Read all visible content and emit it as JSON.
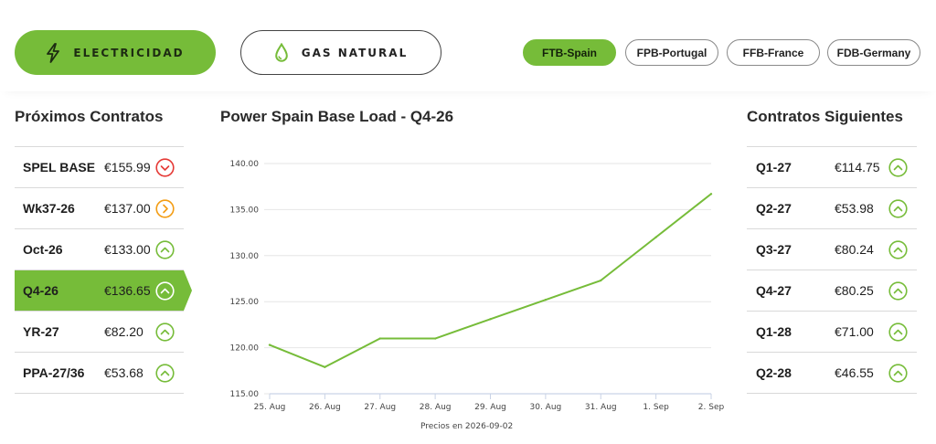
{
  "energy_tabs": [
    {
      "label": "ELECTRICIDAD",
      "active": true
    },
    {
      "label": "GAS NATURAL",
      "active": false
    }
  ],
  "markets": [
    {
      "label": "FTB-Spain",
      "active": true
    },
    {
      "label": "FPB-Portugal",
      "active": false
    },
    {
      "label": "FFB-France",
      "active": false
    },
    {
      "label": "FDB-Germany",
      "active": false
    }
  ],
  "left_panel": {
    "title": "Próximos Contratos",
    "rows": [
      {
        "name": "SPEL BASE",
        "price": "€155.99",
        "trend": "down"
      },
      {
        "name": "Wk37-26",
        "price": "€137.00",
        "trend": "flat"
      },
      {
        "name": "Oct-26",
        "price": "€133.00",
        "trend": "up"
      },
      {
        "name": "Q4-26",
        "price": "€136.65",
        "trend": "up",
        "selected": true
      },
      {
        "name": "YR-27",
        "price": "€82.20",
        "trend": "up"
      },
      {
        "name": "PPA-27/36",
        "price": "€53.68",
        "trend": "up"
      }
    ]
  },
  "right_panel": {
    "title": "Contratos Siguientes",
    "rows": [
      {
        "name": "Q1-27",
        "price": "€114.75",
        "trend": "up"
      },
      {
        "name": "Q2-27",
        "price": "€53.98",
        "trend": "up"
      },
      {
        "name": "Q3-27",
        "price": "€80.24",
        "trend": "up"
      },
      {
        "name": "Q4-27",
        "price": "€80.25",
        "trend": "up"
      },
      {
        "name": "Q1-28",
        "price": "€71.00",
        "trend": "up"
      },
      {
        "name": "Q2-28",
        "price": "€46.55",
        "trend": "up"
      }
    ]
  },
  "colors": {
    "accent": "#76bc39",
    "up": "#76bc39",
    "down": "#e53935",
    "flat": "#f39c12"
  },
  "icons": {
    "electricity": "lightning-bolt-icon",
    "gas": "flame-drop-icon"
  },
  "chart": {
    "title": "Power Spain Base Load - Q4-26",
    "footnote": "Precios en 2026-09-02"
  },
  "chart_data": {
    "type": "line",
    "title": "Power Spain Base Load - Q4-26",
    "categories": [
      "25. Aug",
      "26. Aug",
      "27. Aug",
      "28. Aug",
      "29. Aug",
      "30. Aug",
      "31. Aug",
      "1. Sep",
      "2. Sep"
    ],
    "series": [
      {
        "values": [
          120.3,
          117.9,
          121.0,
          121.0,
          123.1,
          125.2,
          127.3,
          132.0,
          136.7
        ]
      }
    ],
    "yticks": [
      "115.00",
      "120.00",
      "125.00",
      "130.00",
      "135.00",
      "140.00"
    ],
    "ylim": [
      115,
      140
    ],
    "grid": true,
    "legend": "none"
  }
}
